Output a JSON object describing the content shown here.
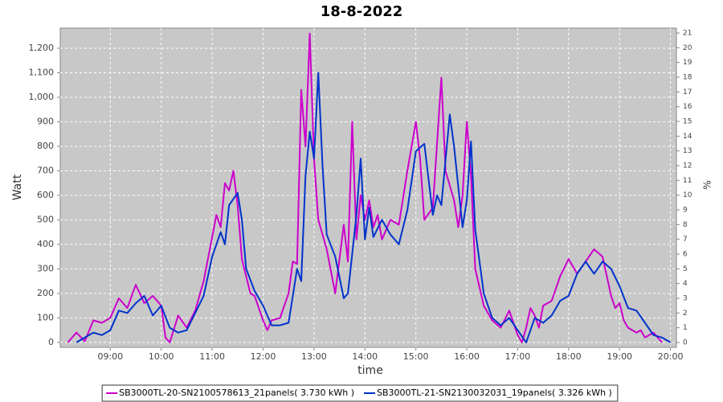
{
  "chart_data": {
    "type": "line",
    "title": "18-8-2022",
    "x_label": "time",
    "y_label": "Watt",
    "y2_label": "%",
    "xlim": [
      "08:01",
      "20:07"
    ],
    "xticks": [
      "09:00",
      "10:00",
      "11:00",
      "12:00",
      "13:00",
      "14:00",
      "15:00",
      "16:00",
      "17:00",
      "18:00",
      "19:00",
      "20:00"
    ],
    "ylim": [
      -20,
      1282
    ],
    "yticks": [
      0,
      100,
      200,
      300,
      400,
      500,
      600,
      700,
      800,
      900,
      {
        "value": 1000,
        "label": "1,000"
      },
      {
        "value": 1100,
        "label": "1,100"
      },
      {
        "value": 1200,
        "label": "1,200"
      }
    ],
    "y2lim": [
      -0.33,
      21.33
    ],
    "y2ticks": [
      0,
      1,
      2,
      3,
      4,
      5,
      6,
      7,
      8,
      9,
      10,
      11,
      12,
      13,
      14,
      15,
      16,
      17,
      18,
      19,
      20,
      21
    ],
    "grid": true,
    "legend": "bottom",
    "series": [
      {
        "name": "SB3000TL-20-SN2100578613_21panels( 3.730 kWh )",
        "color": "#cc00cc",
        "x": [
          "08:10",
          "08:20",
          "08:30",
          "08:40",
          "08:50",
          "09:00",
          "09:10",
          "09:20",
          "09:30",
          "09:40",
          "09:50",
          "10:00",
          "10:05",
          "10:10",
          "10:20",
          "10:30",
          "10:40",
          "10:50",
          "11:00",
          "11:05",
          "11:10",
          "11:15",
          "11:20",
          "11:25",
          "11:30",
          "11:35",
          "11:40",
          "11:45",
          "11:50",
          "12:00",
          "12:05",
          "12:10",
          "12:20",
          "12:30",
          "12:35",
          "12:40",
          "12:45",
          "12:50",
          "12:55",
          "13:00",
          "13:05",
          "13:15",
          "13:25",
          "13:35",
          "13:40",
          "13:45",
          "13:50",
          "13:55",
          "14:00",
          "14:05",
          "14:10",
          "14:15",
          "14:20",
          "14:30",
          "14:40",
          "14:50",
          "15:00",
          "15:05",
          "15:10",
          "15:20",
          "15:30",
          "15:35",
          "15:45",
          "15:50",
          "15:55",
          "16:00",
          "16:05",
          "16:10",
          "16:20",
          "16:30",
          "16:40",
          "16:50",
          "17:00",
          "17:05",
          "17:10",
          "17:15",
          "17:20",
          "17:25",
          "17:30",
          "17:40",
          "17:50",
          "18:00",
          "18:10",
          "18:20",
          "18:30",
          "18:40",
          "18:50",
          "18:55",
          "19:00",
          "19:05",
          "19:10",
          "19:20",
          "19:25",
          "19:30",
          "19:40",
          "19:50"
        ],
        "values": [
          0,
          40,
          5,
          90,
          80,
          100,
          180,
          140,
          235,
          160,
          190,
          150,
          20,
          0,
          110,
          60,
          130,
          250,
          430,
          520,
          470,
          650,
          620,
          700,
          560,
          340,
          270,
          200,
          190,
          90,
          50,
          90,
          100,
          200,
          330,
          320,
          1030,
          800,
          1260,
          750,
          500,
          380,
          200,
          480,
          330,
          900,
          420,
          600,
          500,
          580,
          470,
          520,
          420,
          500,
          480,
          700,
          900,
          750,
          500,
          550,
          1080,
          700,
          580,
          470,
          600,
          900,
          680,
          300,
          150,
          90,
          60,
          130,
          30,
          0,
          60,
          140,
          110,
          60,
          150,
          170,
          270,
          340,
          280,
          330,
          380,
          350,
          190,
          140,
          160,
          90,
          60,
          40,
          50,
          20,
          40,
          0
        ]
      },
      {
        "name": "SB3000TL-21-SN2130032031_19panels( 3.326 kWh )",
        "color": "#0033cc",
        "x": [
          "08:20",
          "08:30",
          "08:40",
          "08:50",
          "09:00",
          "09:10",
          "09:20",
          "09:30",
          "09:40",
          "09:50",
          "10:00",
          "10:10",
          "10:20",
          "10:30",
          "10:40",
          "10:50",
          "11:00",
          "11:10",
          "11:15",
          "11:20",
          "11:30",
          "11:35",
          "11:40",
          "11:50",
          "12:00",
          "12:10",
          "12:20",
          "12:30",
          "12:40",
          "12:45",
          "12:50",
          "12:55",
          "13:00",
          "13:05",
          "13:10",
          "13:15",
          "13:25",
          "13:35",
          "13:40",
          "13:50",
          "13:55",
          "14:00",
          "14:05",
          "14:10",
          "14:20",
          "14:30",
          "14:40",
          "14:50",
          "15:00",
          "15:10",
          "15:20",
          "15:25",
          "15:30",
          "15:40",
          "15:45",
          "15:55",
          "16:00",
          "16:05",
          "16:10",
          "16:20",
          "16:30",
          "16:40",
          "16:50",
          "17:00",
          "17:10",
          "17:20",
          "17:30",
          "17:40",
          "17:50",
          "18:00",
          "18:10",
          "18:20",
          "18:30",
          "18:40",
          "18:50",
          "19:00",
          "19:10",
          "19:20",
          "19:30",
          "19:40",
          "19:50",
          "20:00"
        ],
        "values": [
          0,
          20,
          40,
          30,
          50,
          130,
          120,
          160,
          190,
          110,
          150,
          60,
          40,
          50,
          120,
          190,
          350,
          450,
          400,
          560,
          610,
          500,
          300,
          210,
          150,
          70,
          70,
          80,
          300,
          250,
          680,
          860,
          750,
          1100,
          720,
          440,
          350,
          180,
          200,
          520,
          750,
          420,
          550,
          430,
          500,
          440,
          400,
          540,
          780,
          810,
          520,
          600,
          560,
          930,
          800,
          470,
          580,
          820,
          460,
          200,
          100,
          70,
          100,
          50,
          0,
          100,
          80,
          110,
          170,
          190,
          280,
          330,
          280,
          330,
          300,
          230,
          140,
          130,
          80,
          30,
          20,
          0
        ]
      }
    ]
  }
}
